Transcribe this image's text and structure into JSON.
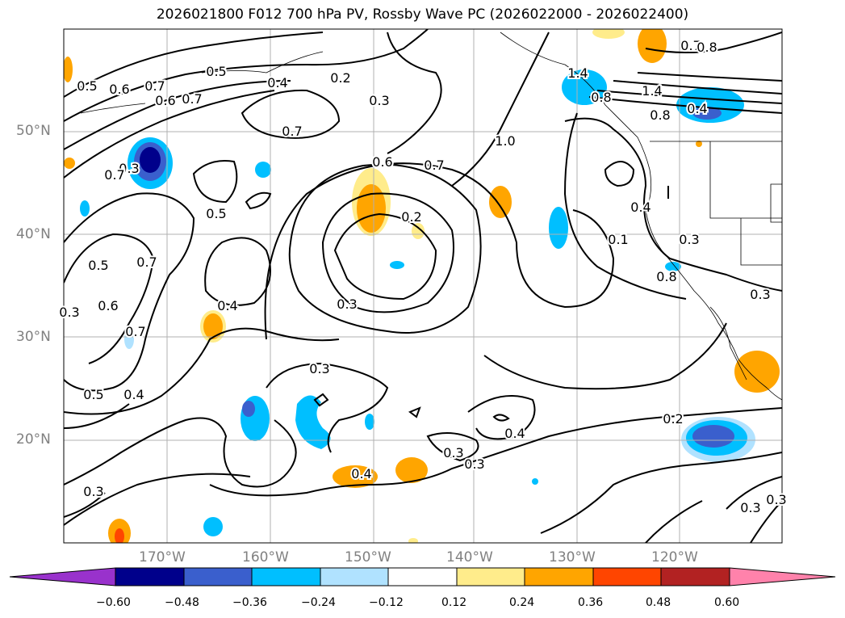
{
  "title": "2026021800 F012 700 hPa PV, Rossby Wave PC (2026022000 - 2026022400)",
  "map": {
    "longitude_labels": [
      "170°W",
      "160°W",
      "150°W",
      "140°W",
      "130°W",
      "120°W"
    ],
    "latitude_labels": [
      "50°N",
      "40°N",
      "30°N",
      "20°N"
    ],
    "contour_labels": [
      "0.5",
      "0.6",
      "0.7",
      "0.6",
      "0.5",
      "0.4",
      "0.2",
      "0.3",
      "0.7",
      "1.4",
      "0.8",
      "0.7",
      "0.8",
      "1.4",
      "0.8",
      "0.7",
      "0.3",
      "0.6",
      "0.7",
      "0.5",
      "1.0",
      "0.4",
      "0.2",
      "0.7",
      "0.5",
      "0.4",
      "0.3",
      "0.3",
      "0.3",
      "0.6",
      "0.7",
      "0.5",
      "0.4",
      "0.3",
      "0.3",
      "0.3",
      "0.4",
      "0.3",
      "0.2",
      "0.3",
      "0.4",
      "0.3",
      "0.3",
      "0.7",
      "0.1",
      "0.8",
      "0.4"
    ]
  },
  "colorbar": {
    "ticks": [
      "−0.60",
      "−0.48",
      "−0.36",
      "−0.24",
      "−0.12",
      "0.12",
      "0.24",
      "0.36",
      "0.48",
      "0.60"
    ],
    "colors": [
      "#9932cc",
      "#00008b",
      "#3a5fcd",
      "#00bfff",
      "#b0e2ff",
      "#ffffff",
      "#ffec8b",
      "#ffa500",
      "#ff4500",
      "#b22222",
      "#ff82ab"
    ]
  }
}
